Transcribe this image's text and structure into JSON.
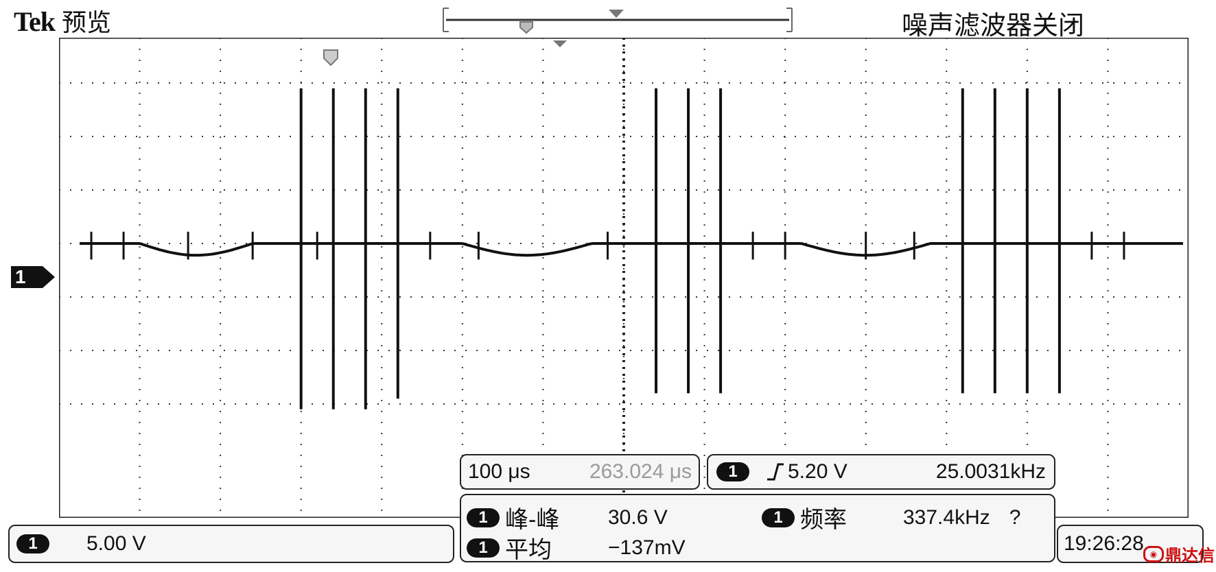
{
  "header": {
    "brand": "Tek",
    "mode": "预览",
    "filter_status": "噪声滤波器关闭"
  },
  "channel_marker": "1",
  "timebase": {
    "scale": "100 μs",
    "position": "263.024 μs"
  },
  "trigger": {
    "channel": "1",
    "slope_icon": "rising-edge-icon",
    "level": "5.20 V",
    "frequency": "25.0031kHz"
  },
  "measurements": [
    {
      "channel": "1",
      "label": "峰-峰",
      "value": "30.6 V"
    },
    {
      "channel": "1",
      "label": "频率",
      "value": "337.4kHz",
      "flag": "?"
    },
    {
      "channel": "1",
      "label": "平均",
      "value": "−137mV"
    }
  ],
  "channel_scale": {
    "channel": "1",
    "value": "5.00 V"
  },
  "clock": "19:26:28",
  "watermark": "鼎达信",
  "colors": {
    "trace": "#111111",
    "grid": "#222222",
    "background": "#ffffff",
    "muted_text": "#9a9a9a",
    "watermark": "#cc1111"
  },
  "waveform": {
    "volts_per_div": 5,
    "time_per_div_us": 100,
    "baseline_div": 0,
    "spikes": [
      {
        "div": 3.0,
        "top": 2.9,
        "bottom": -3.1
      },
      {
        "div": 3.4,
        "top": 2.9,
        "bottom": -3.1
      },
      {
        "div": 3.8,
        "top": 2.9,
        "bottom": -3.1
      },
      {
        "div": 4.2,
        "top": 2.9,
        "bottom": -2.9
      },
      {
        "div": 7.4,
        "top": 2.9,
        "bottom": -2.8
      },
      {
        "div": 7.8,
        "top": 2.9,
        "bottom": -2.8
      },
      {
        "div": 8.2,
        "top": 2.9,
        "bottom": -2.8
      },
      {
        "div": 11.2,
        "top": 2.9,
        "bottom": -2.8
      },
      {
        "div": 11.6,
        "top": 2.9,
        "bottom": -2.8
      },
      {
        "div": 12.0,
        "top": 2.9,
        "bottom": -2.8
      },
      {
        "div": 12.4,
        "top": 2.9,
        "bottom": -2.8
      }
    ]
  }
}
